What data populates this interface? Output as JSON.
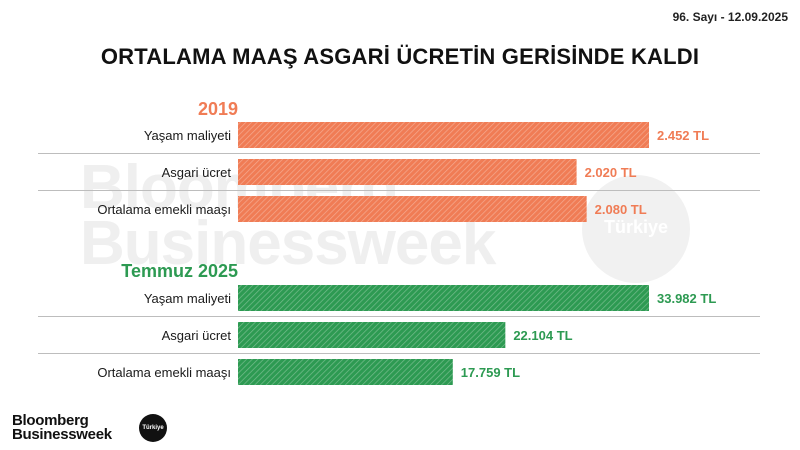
{
  "header": {
    "issue": "96. Sayı - 12.09.2025",
    "title": "ORTALAMA MAAŞ ASGARİ ÜCRETİN GERİSİNDE KALDI"
  },
  "watermark": {
    "line1": "Bloomberg",
    "line2": "Businessweek",
    "badge": "Türkiye"
  },
  "footer": {
    "logo_line1": "Bloomberg",
    "logo_line2": "Businessweek",
    "badge": "Türkiye"
  },
  "chart_data": {
    "type": "bar",
    "orientation": "horizontal",
    "title": "ORTALAMA MAAŞ ASGARİ ÜCRETİN GERİSİNDE KALDI",
    "groups": [
      {
        "name": "2019",
        "color": "#f07c55",
        "categories": [
          "Yaşam maliyeti",
          "Asgari ücret",
          "Ortalama emekli maaşı"
        ],
        "values": [
          2452,
          2020,
          2080
        ],
        "labels": [
          "2.452 TL",
          "2.020 TL",
          "2.080 TL"
        ],
        "xlim": [
          0,
          2452
        ]
      },
      {
        "name": "Temmuz 2025",
        "color": "#2d9a52",
        "categories": [
          "Yaşam maliyeti",
          "Asgari ücret",
          "Ortalama emekli maaşı"
        ],
        "values": [
          33982,
          22104,
          17759
        ],
        "labels": [
          "33.982 TL",
          "22.104 TL",
          "17.759 TL"
        ],
        "xlim": [
          0,
          33982
        ]
      }
    ]
  }
}
